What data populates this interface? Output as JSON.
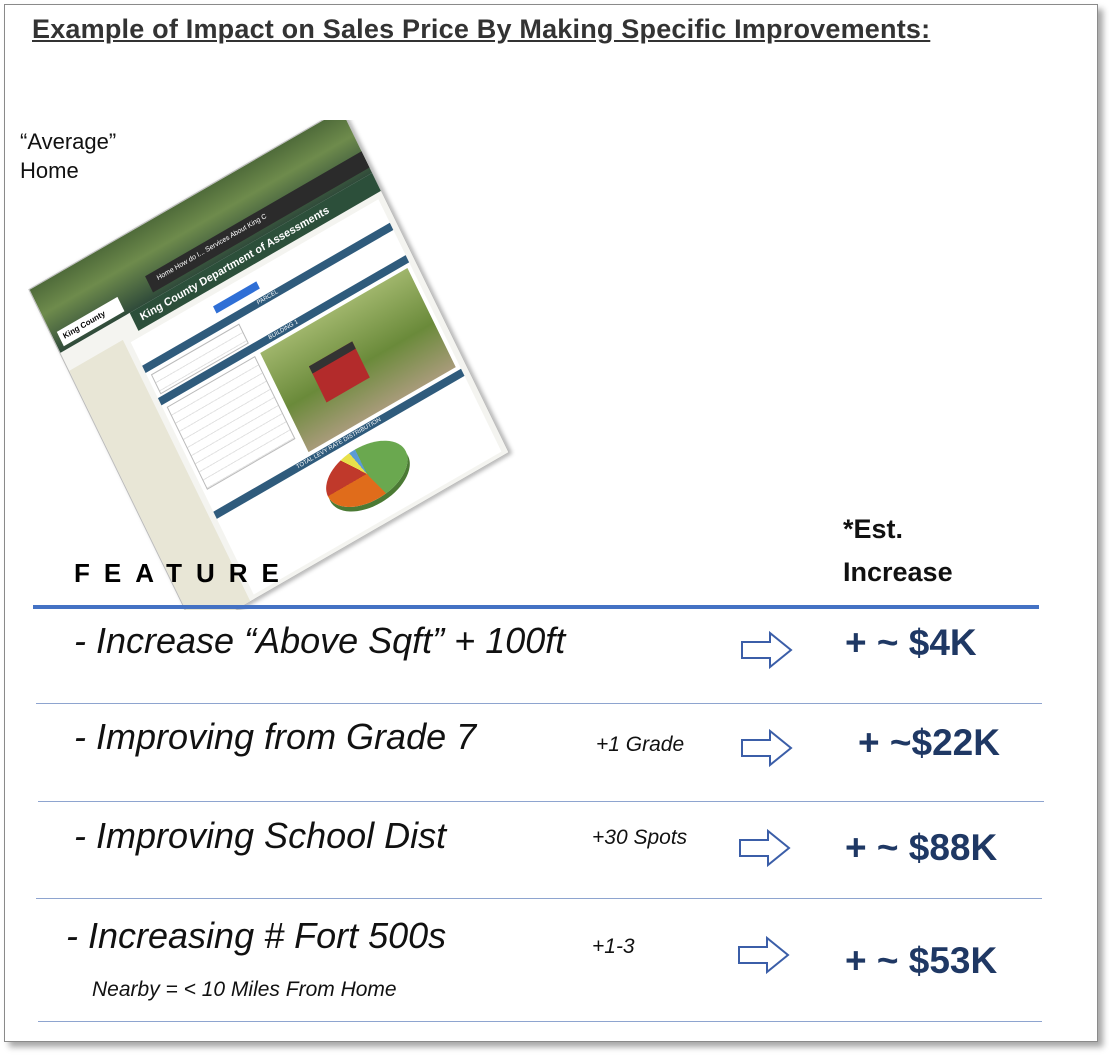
{
  "title": "Example of Impact on Sales Price By Making Specific Improvements:",
  "average_label_line1": "“Average”",
  "average_label_line2": "Home",
  "screenshot": {
    "site_title": "King County Department of Assessments",
    "logo_text": "King County",
    "nav": "Home   How do I...   Services   About King C",
    "section_parcel": "PARCEL",
    "section_building": "BUILDING 1",
    "section_levy": "TOTAL LEVY RATE DISTRIBUTION"
  },
  "est_header_line1": "*Est.",
  "est_header_line2": "Increase",
  "feature_header": "FEATURE",
  "colors": {
    "accent_rule": "#4472c4",
    "value_text": "#1f3864"
  },
  "rows": [
    {
      "feature": "- Increase “Above Sqft” + 100ft",
      "detail": "",
      "value": "+ ~ $4K",
      "icon": "right-arrow-icon"
    },
    {
      "feature": "- Improving from Grade 7",
      "detail": "+1 Grade",
      "value": "+ ~$22K",
      "icon": "right-arrow-icon"
    },
    {
      "feature": "- Improving School Dist",
      "detail": "+30 Spots",
      "value": "+ ~ $88K",
      "icon": "right-arrow-icon"
    },
    {
      "feature": "- Increasing # Fort 500s",
      "detail": "+1-3",
      "value": "+ ~ $53K",
      "note": "Nearby = < 10 Miles From Home",
      "icon": "right-arrow-icon"
    }
  ]
}
